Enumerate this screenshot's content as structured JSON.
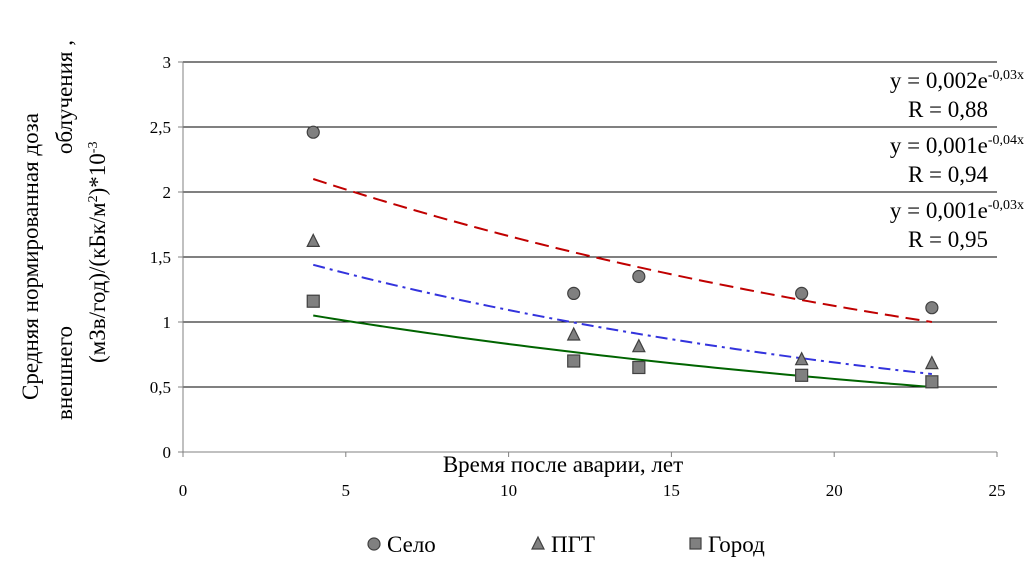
{
  "chart_data": {
    "type": "scatter",
    "xlabel": "Время после аварии, лет",
    "ylabel_lines": [
      "Средняя нормированная доза",
      "облучения ,",
      "внешнего",
      "(мЗв/год)/(кБк/м",
      "2",
      ")*10",
      "-3"
    ],
    "xlim": [
      0,
      25
    ],
    "ylim": [
      0,
      3
    ],
    "x_ticks": [
      "0",
      "5",
      "10",
      "15",
      "20",
      "25"
    ],
    "y_ticks": [
      "0",
      "0,5",
      "1",
      "1,5",
      "2",
      "2,5",
      "3"
    ],
    "x_tick_values": [
      0,
      5,
      10,
      15,
      20,
      25
    ],
    "y_tick_values": [
      0,
      0.5,
      1,
      1.5,
      2,
      2.5,
      3
    ],
    "grid": "horizontal",
    "legend_position": "bottom",
    "series": [
      {
        "name": "Село",
        "marker": "circle",
        "x": [
          4,
          12,
          14,
          19,
          23
        ],
        "y": [
          2.46,
          1.22,
          1.35,
          1.22,
          1.11
        ]
      },
      {
        "name": "ПГТ",
        "marker": "triangle",
        "x": [
          4,
          12,
          14,
          19,
          23
        ],
        "y": [
          1.62,
          0.9,
          0.81,
          0.71,
          0.68
        ]
      },
      {
        "name": "Город",
        "marker": "square",
        "x": [
          4,
          12,
          14,
          19,
          23
        ],
        "y": [
          1.16,
          0.7,
          0.65,
          0.59,
          0.54
        ]
      }
    ],
    "trendlines": [
      {
        "series": "Село",
        "color": "#c00000",
        "dash": "dash",
        "x_range": [
          4,
          23
        ],
        "y_start": 2.1,
        "y_end": 1.0
      },
      {
        "series": "ПГТ",
        "color": "#3333dd",
        "dash": "dashdot",
        "x_range": [
          4,
          23
        ],
        "y_start": 1.44,
        "y_end": 0.6
      },
      {
        "series": "Город",
        "color": "#006400",
        "dash": "solid",
        "x_range": [
          4,
          23
        ],
        "y_start": 1.05,
        "y_end": 0.5
      }
    ],
    "annotations": [
      {
        "base": "y = 0,002e",
        "exp": "-0,03x",
        "r": "R = 0,88"
      },
      {
        "base": "y = 0,001e",
        "exp": "-0,04x",
        "r": "R = 0,94"
      },
      {
        "base": "y = 0,001e",
        "exp": "-0,03x",
        "r": "R = 0,95"
      }
    ],
    "colors": {
      "marker_fill": "#808080",
      "marker_stroke": "#404040",
      "grid": "#000000",
      "axis": "#808080"
    }
  }
}
